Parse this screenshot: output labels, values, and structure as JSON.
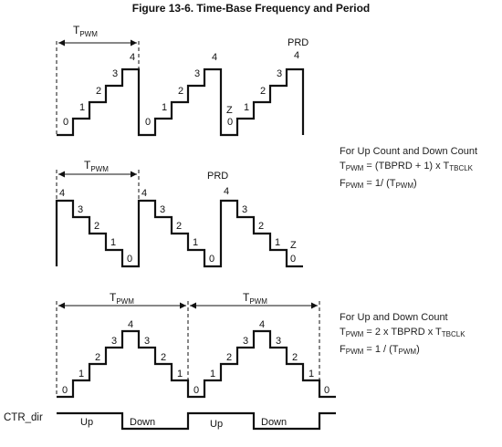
{
  "figure_title": "Figure 13-6. Time-Base Frequency and Period",
  "period_label": {
    "main": "T",
    "sub": "PWM"
  },
  "up_count": {
    "step_labels": [
      "0",
      "1",
      "2",
      "3",
      "4"
    ],
    "prd_label": "PRD",
    "zero_label": "Z",
    "zero_label_char": "0"
  },
  "down_count": {
    "step_labels": [
      "4",
      "3",
      "2",
      "1",
      "0"
    ],
    "prd_label": "PRD",
    "zero_label": "Z"
  },
  "up_down_count": {
    "step_labels": [
      "0",
      "1",
      "2",
      "3",
      "4",
      "3",
      "2",
      "1",
      "0"
    ]
  },
  "ctr_dir": {
    "label": "CTR_dir",
    "up": "Up",
    "down": "Down"
  },
  "formula_up_or_down": {
    "heading": "For Up Count and Down Count",
    "line1": {
      "lhs_main": "T",
      "lhs_sub": "PWM",
      "mid": " = (TBPRD + 1) x T",
      "rhs_sub": "TBCLK"
    },
    "line2": {
      "lhs_main": "F",
      "lhs_sub": "PWM",
      "mid": " = 1/ (T",
      "rhs_sub": "PWM",
      "tail": ")"
    }
  },
  "formula_up_and_down": {
    "heading": "For Up and Down Count",
    "line1": {
      "lhs_main": "T",
      "lhs_sub": "PWM",
      "mid": " = 2 x TBPRD x T",
      "rhs_sub": "TBCLK"
    },
    "line2": {
      "lhs_main": "F",
      "lhs_sub": "PWM",
      "mid": " = 1 / (T",
      "rhs_sub": "PWM",
      "tail": ")"
    }
  }
}
